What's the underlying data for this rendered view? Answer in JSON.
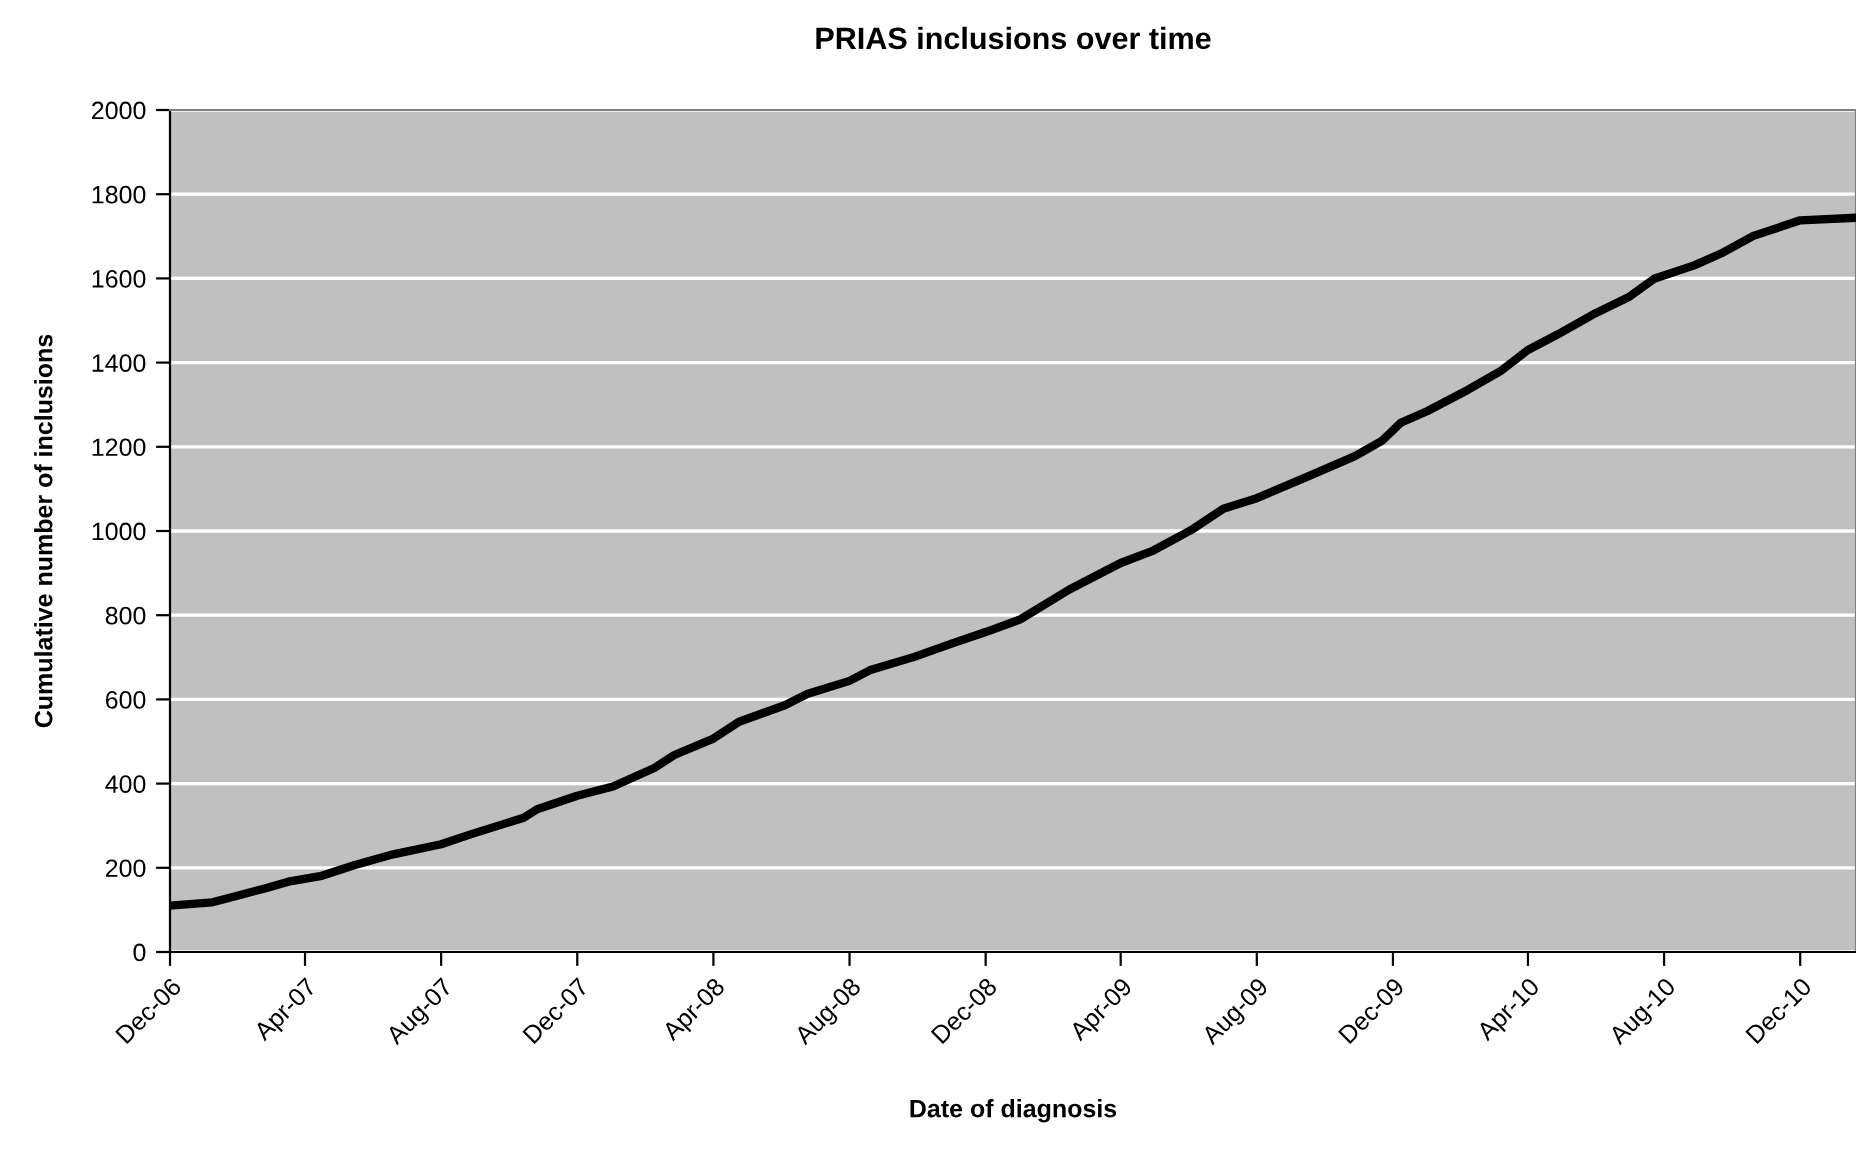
{
  "chart_data": {
    "type": "line",
    "title": "PRIAS inclusions over time",
    "xlabel": "Date of diagnosis",
    "ylabel": "Cumulative number of inclusions",
    "series": [
      {
        "color": "#000000",
        "x": [
          "2006-12-01",
          "2007-01-08",
          "2007-02-01",
          "2007-02-24",
          "2007-03-17",
          "2007-04-16",
          "2007-05-15",
          "2007-06-19",
          "2007-08-01",
          "2007-08-28",
          "2007-10-14",
          "2007-10-26",
          "2007-12-01",
          "2008-01-02",
          "2008-02-08",
          "2008-02-26",
          "2008-04-01",
          "2008-04-24",
          "2008-06-04",
          "2008-06-24",
          "2008-08-01",
          "2008-08-19",
          "2008-09-28",
          "2008-11-03",
          "2008-12-01",
          "2009-01-01",
          "2009-02-14",
          "2009-04-01",
          "2009-04-29",
          "2009-06-03",
          "2009-07-02",
          "2009-08-01",
          "2009-09-17",
          "2009-10-28",
          "2009-11-21",
          "2009-12-08",
          "2010-01-01",
          "2010-02-06",
          "2010-03-07",
          "2010-04-01",
          "2010-04-27",
          "2010-06-01",
          "2010-06-30",
          "2010-07-23",
          "2010-08-28",
          "2010-09-21",
          "2010-10-20",
          "2010-12-01",
          "2011-01-20"
        ],
        "values": [
          110,
          118,
          135,
          151,
          167,
          181,
          206,
          232,
          256,
          280,
          319,
          339,
          371,
          393,
          437,
          468,
          507,
          547,
          586,
          613,
          644,
          669,
          701,
          735,
          760,
          790,
          861,
          924,
          952,
          1002,
          1053,
          1078,
          1131,
          1178,
          1214,
          1257,
          1285,
          1335,
          1379,
          1430,
          1466,
          1518,
          1555,
          1599,
          1631,
          1659,
          1701,
          1738,
          1744
        ]
      }
    ],
    "xlim": [
      "2006-12-01",
      "2011-01-20"
    ],
    "xticks": [
      {
        "value": "2006-12-01",
        "label": "Dec-06"
      },
      {
        "value": "2007-04-01",
        "label": "Apr-07"
      },
      {
        "value": "2007-08-01",
        "label": "Aug-07"
      },
      {
        "value": "2007-12-01",
        "label": "Dec-07"
      },
      {
        "value": "2008-04-01",
        "label": "Apr-08"
      },
      {
        "value": "2008-08-01",
        "label": "Aug-08"
      },
      {
        "value": "2008-12-01",
        "label": "Dec-08"
      },
      {
        "value": "2009-04-01",
        "label": "Apr-09"
      },
      {
        "value": "2009-08-01",
        "label": "Aug-09"
      },
      {
        "value": "2009-12-01",
        "label": "Dec-09"
      },
      {
        "value": "2010-04-01",
        "label": "Apr-10"
      },
      {
        "value": "2010-08-01",
        "label": "Aug-10"
      },
      {
        "value": "2010-12-01",
        "label": "Dec-10"
      }
    ],
    "ylim": [
      0,
      2000
    ],
    "yticks": [
      0,
      200,
      400,
      600,
      800,
      1000,
      1200,
      1400,
      1600,
      1800,
      2000
    ],
    "grid": "y",
    "legend": false,
    "marker": "none",
    "line_style": "solid"
  }
}
